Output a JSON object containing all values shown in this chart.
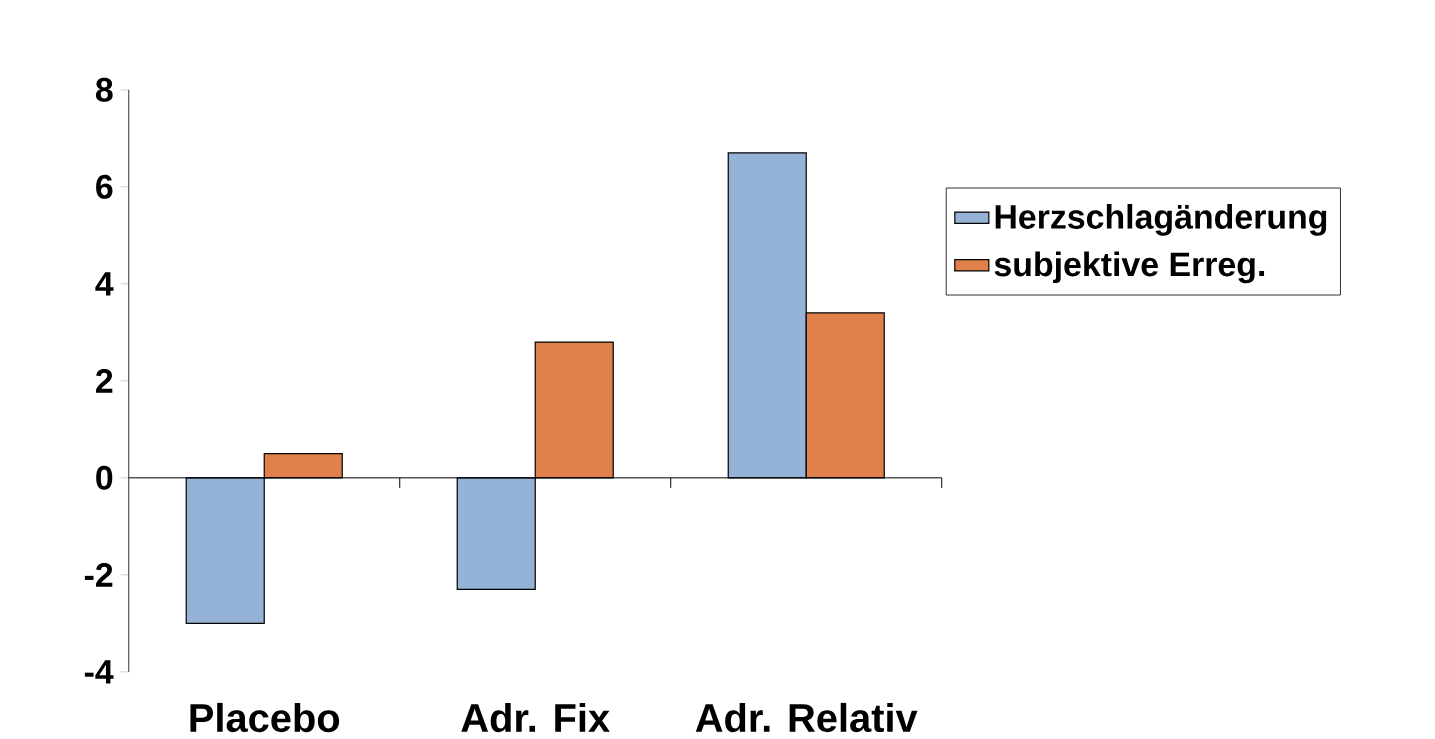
{
  "chart_data": {
    "type": "bar",
    "categories": [
      "Placebo",
      "Adr. Fix",
      "Adr. Relativ"
    ],
    "series": [
      {
        "name": "Herzschlagänderung",
        "color": "#95b3d7",
        "values": [
          -3,
          -2.3,
          6.7
        ]
      },
      {
        "name": "subjektive Erreg.",
        "color": "#e0804a",
        "values": [
          0.5,
          2.8,
          3.4
        ]
      }
    ],
    "ylim": [
      -4,
      8
    ],
    "yticks": [
      -4,
      -2,
      0,
      2,
      4,
      6,
      8
    ],
    "legend": "right"
  }
}
